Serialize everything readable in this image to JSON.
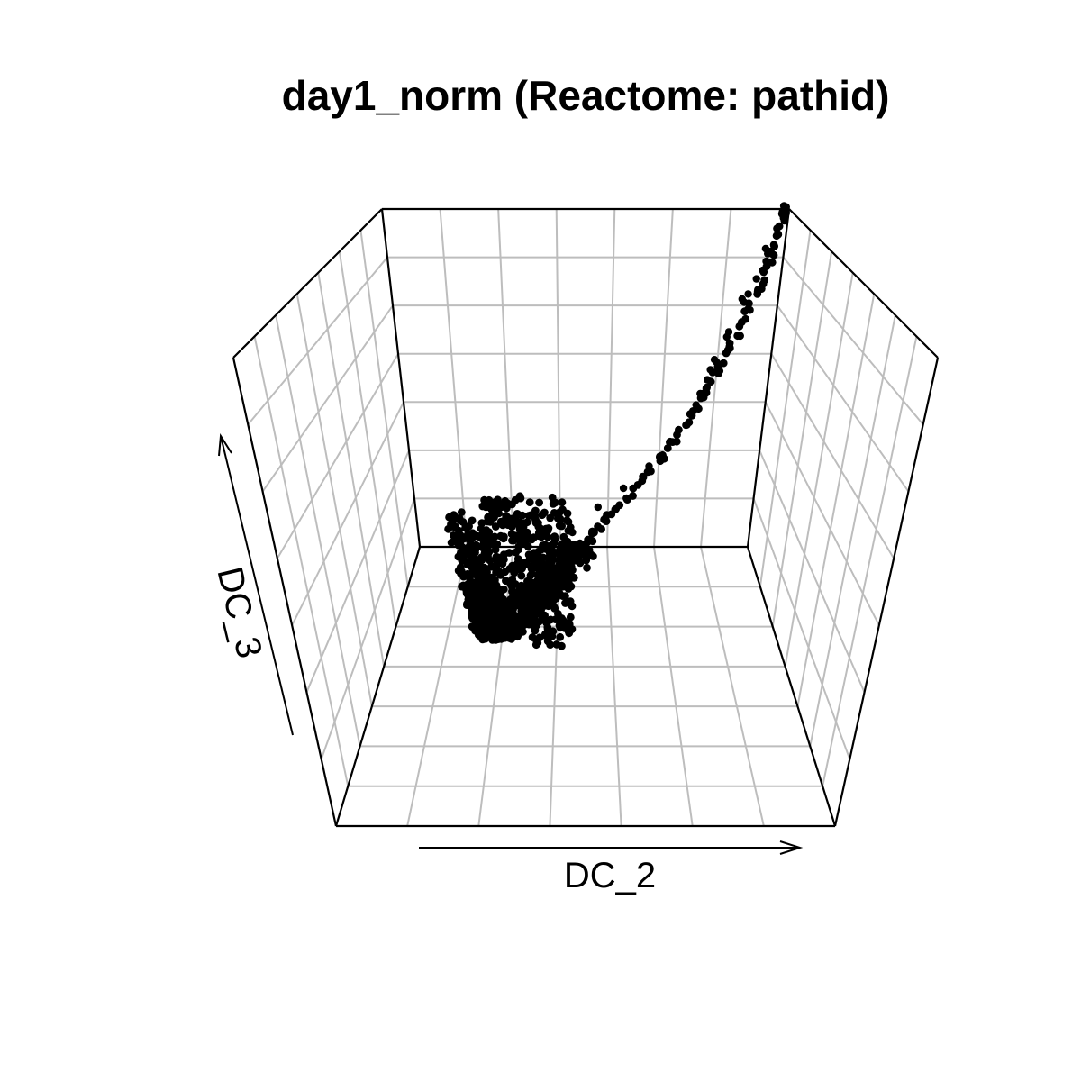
{
  "chart_data": {
    "type": "scatter",
    "title": "day1_norm (Reactome: pathid)",
    "xlabel": "DC_2",
    "ylabel": "DC_3",
    "grid": true,
    "colors": {
      "points": "#000000",
      "grid": "#bdbdbd",
      "box": "#000000"
    },
    "trajectory": [
      [
        0.114,
        0.49
      ],
      [
        0.125,
        0.435
      ],
      [
        0.132,
        0.388
      ],
      [
        0.137,
        0.357
      ],
      [
        0.141,
        0.338
      ],
      [
        0.146,
        0.319
      ],
      [
        0.152,
        0.318
      ],
      [
        0.16,
        0.322
      ],
      [
        0.172,
        0.34
      ],
      [
        0.185,
        0.362
      ],
      [
        0.198,
        0.385
      ],
      [
        0.215,
        0.412
      ],
      [
        0.235,
        0.448
      ],
      [
        0.255,
        0.485
      ],
      [
        0.275,
        0.52
      ],
      [
        0.297,
        0.56
      ],
      [
        0.318,
        0.6
      ],
      [
        0.339,
        0.65
      ],
      [
        0.358,
        0.7
      ],
      [
        0.375,
        0.75
      ],
      [
        0.391,
        0.8
      ],
      [
        0.405,
        0.85
      ],
      [
        0.418,
        0.9
      ],
      [
        0.428,
        0.95
      ],
      [
        0.434,
        0.992
      ]
    ],
    "outliers": [
      [
        0.43,
        0.975
      ],
      [
        0.425,
        0.952
      ],
      [
        0.414,
        0.92
      ],
      [
        0.416,
        0.912
      ],
      [
        0.405,
        0.872
      ],
      [
        0.397,
        0.848
      ],
      [
        0.391,
        0.84
      ],
      [
        0.393,
        0.835
      ],
      [
        0.378,
        0.788
      ],
      [
        0.376,
        0.78
      ],
      [
        0.364,
        0.744
      ],
      [
        0.366,
        0.74
      ],
      [
        0.36,
        0.728
      ],
      [
        0.357,
        0.712
      ],
      [
        0.35,
        0.69
      ],
      [
        0.346,
        0.672
      ],
      [
        0.342,
        0.655
      ],
      [
        0.336,
        0.64
      ],
      [
        0.32,
        0.613
      ],
      [
        0.3,
        0.575
      ],
      [
        0.275,
        0.54
      ],
      [
        0.25,
        0.51
      ],
      [
        0.225,
        0.47
      ]
    ]
  }
}
